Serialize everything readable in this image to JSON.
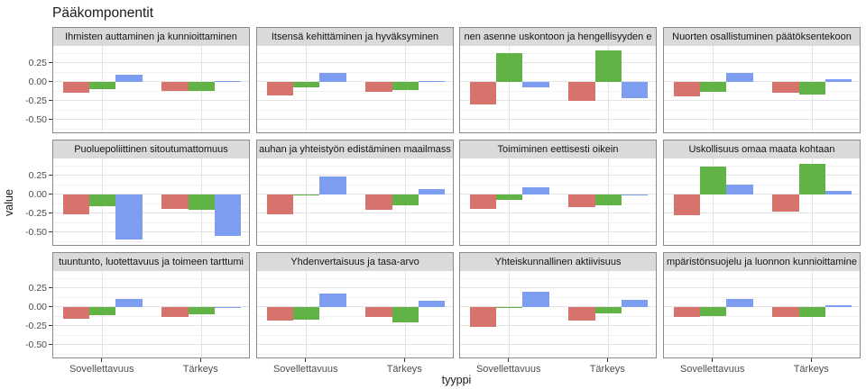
{
  "title": "Pääkomponentit",
  "chart_data": {
    "type": "bar",
    "title": "Pääkomponentit",
    "xlabel": "tyyppi",
    "ylabel": "value",
    "categories": [
      "Sovellettavuus",
      "Tärkeys"
    ],
    "series_names": [
      "red-series",
      "green-series",
      "blue-series"
    ],
    "series_colors": [
      "#d6736c",
      "#61b345",
      "#7d9df1"
    ],
    "ylim": [
      -0.68,
      0.47
    ],
    "y_ticks": [
      0.25,
      0.0,
      -0.25,
      -0.5
    ],
    "y_tick_labels": [
      "0.25",
      "0.00",
      "-0.25",
      "-0.50"
    ],
    "grid": "major-and-minor",
    "legend_position": "none",
    "facets": [
      {
        "label": "Ihmisten auttaminen ja kunnioittaminen",
        "values": [
          [
            -0.15,
            -0.1,
            0.09
          ],
          [
            -0.12,
            -0.12,
            0.01
          ]
        ]
      },
      {
        "label": "Itsensä kehittäminen ja hyväksyminen",
        "values": [
          [
            -0.18,
            -0.08,
            0.12
          ],
          [
            -0.13,
            -0.11,
            0.01
          ]
        ]
      },
      {
        "label": "nen asenne uskontoon ja hengellisyyden e",
        "values": [
          [
            -0.3,
            0.38,
            -0.08
          ],
          [
            -0.25,
            0.41,
            -0.22
          ]
        ]
      },
      {
        "label": "Nuorten osallistuminen päätöksentekoon",
        "values": [
          [
            -0.19,
            -0.14,
            0.11
          ],
          [
            -0.15,
            -0.17,
            0.03
          ]
        ]
      },
      {
        "label": "Puoluepoliittinen sitoutumattomuus",
        "values": [
          [
            -0.27,
            -0.16,
            -0.6
          ],
          [
            -0.19,
            -0.21,
            -0.55
          ]
        ]
      },
      {
        "label": "auhan ja yhteistyön edistäminen maailmass",
        "values": [
          [
            -0.26,
            -0.02,
            0.24
          ],
          [
            -0.21,
            -0.15,
            0.07
          ]
        ]
      },
      {
        "label": "Toimiminen eettisesti oikein",
        "values": [
          [
            -0.2,
            -0.07,
            0.09
          ],
          [
            -0.17,
            -0.15,
            -0.01
          ]
        ]
      },
      {
        "label": "Uskollisuus omaa maata kohtaan",
        "values": [
          [
            -0.28,
            0.37,
            0.13
          ],
          [
            -0.23,
            0.4,
            0.04
          ]
        ]
      },
      {
        "label": "tuuntunto, luotettavuus ja toimeen tarttumi",
        "values": [
          [
            -0.16,
            -0.11,
            0.1
          ],
          [
            -0.14,
            -0.1,
            -0.01
          ]
        ]
      },
      {
        "label": "Yhdenvertaisuus ja tasa-arvo",
        "values": [
          [
            -0.18,
            -0.17,
            0.17
          ],
          [
            -0.14,
            -0.21,
            0.08
          ]
        ]
      },
      {
        "label": "Yhteiskunnallinen aktiivisuus",
        "values": [
          [
            -0.26,
            -0.02,
            0.2
          ],
          [
            -0.18,
            -0.09,
            0.09
          ]
        ]
      },
      {
        "label": "mpäristönsuojelu ja luonnon kunnioittamine",
        "values": [
          [
            -0.14,
            -0.12,
            0.1
          ],
          [
            -0.13,
            -0.13,
            0.02
          ]
        ]
      }
    ]
  }
}
